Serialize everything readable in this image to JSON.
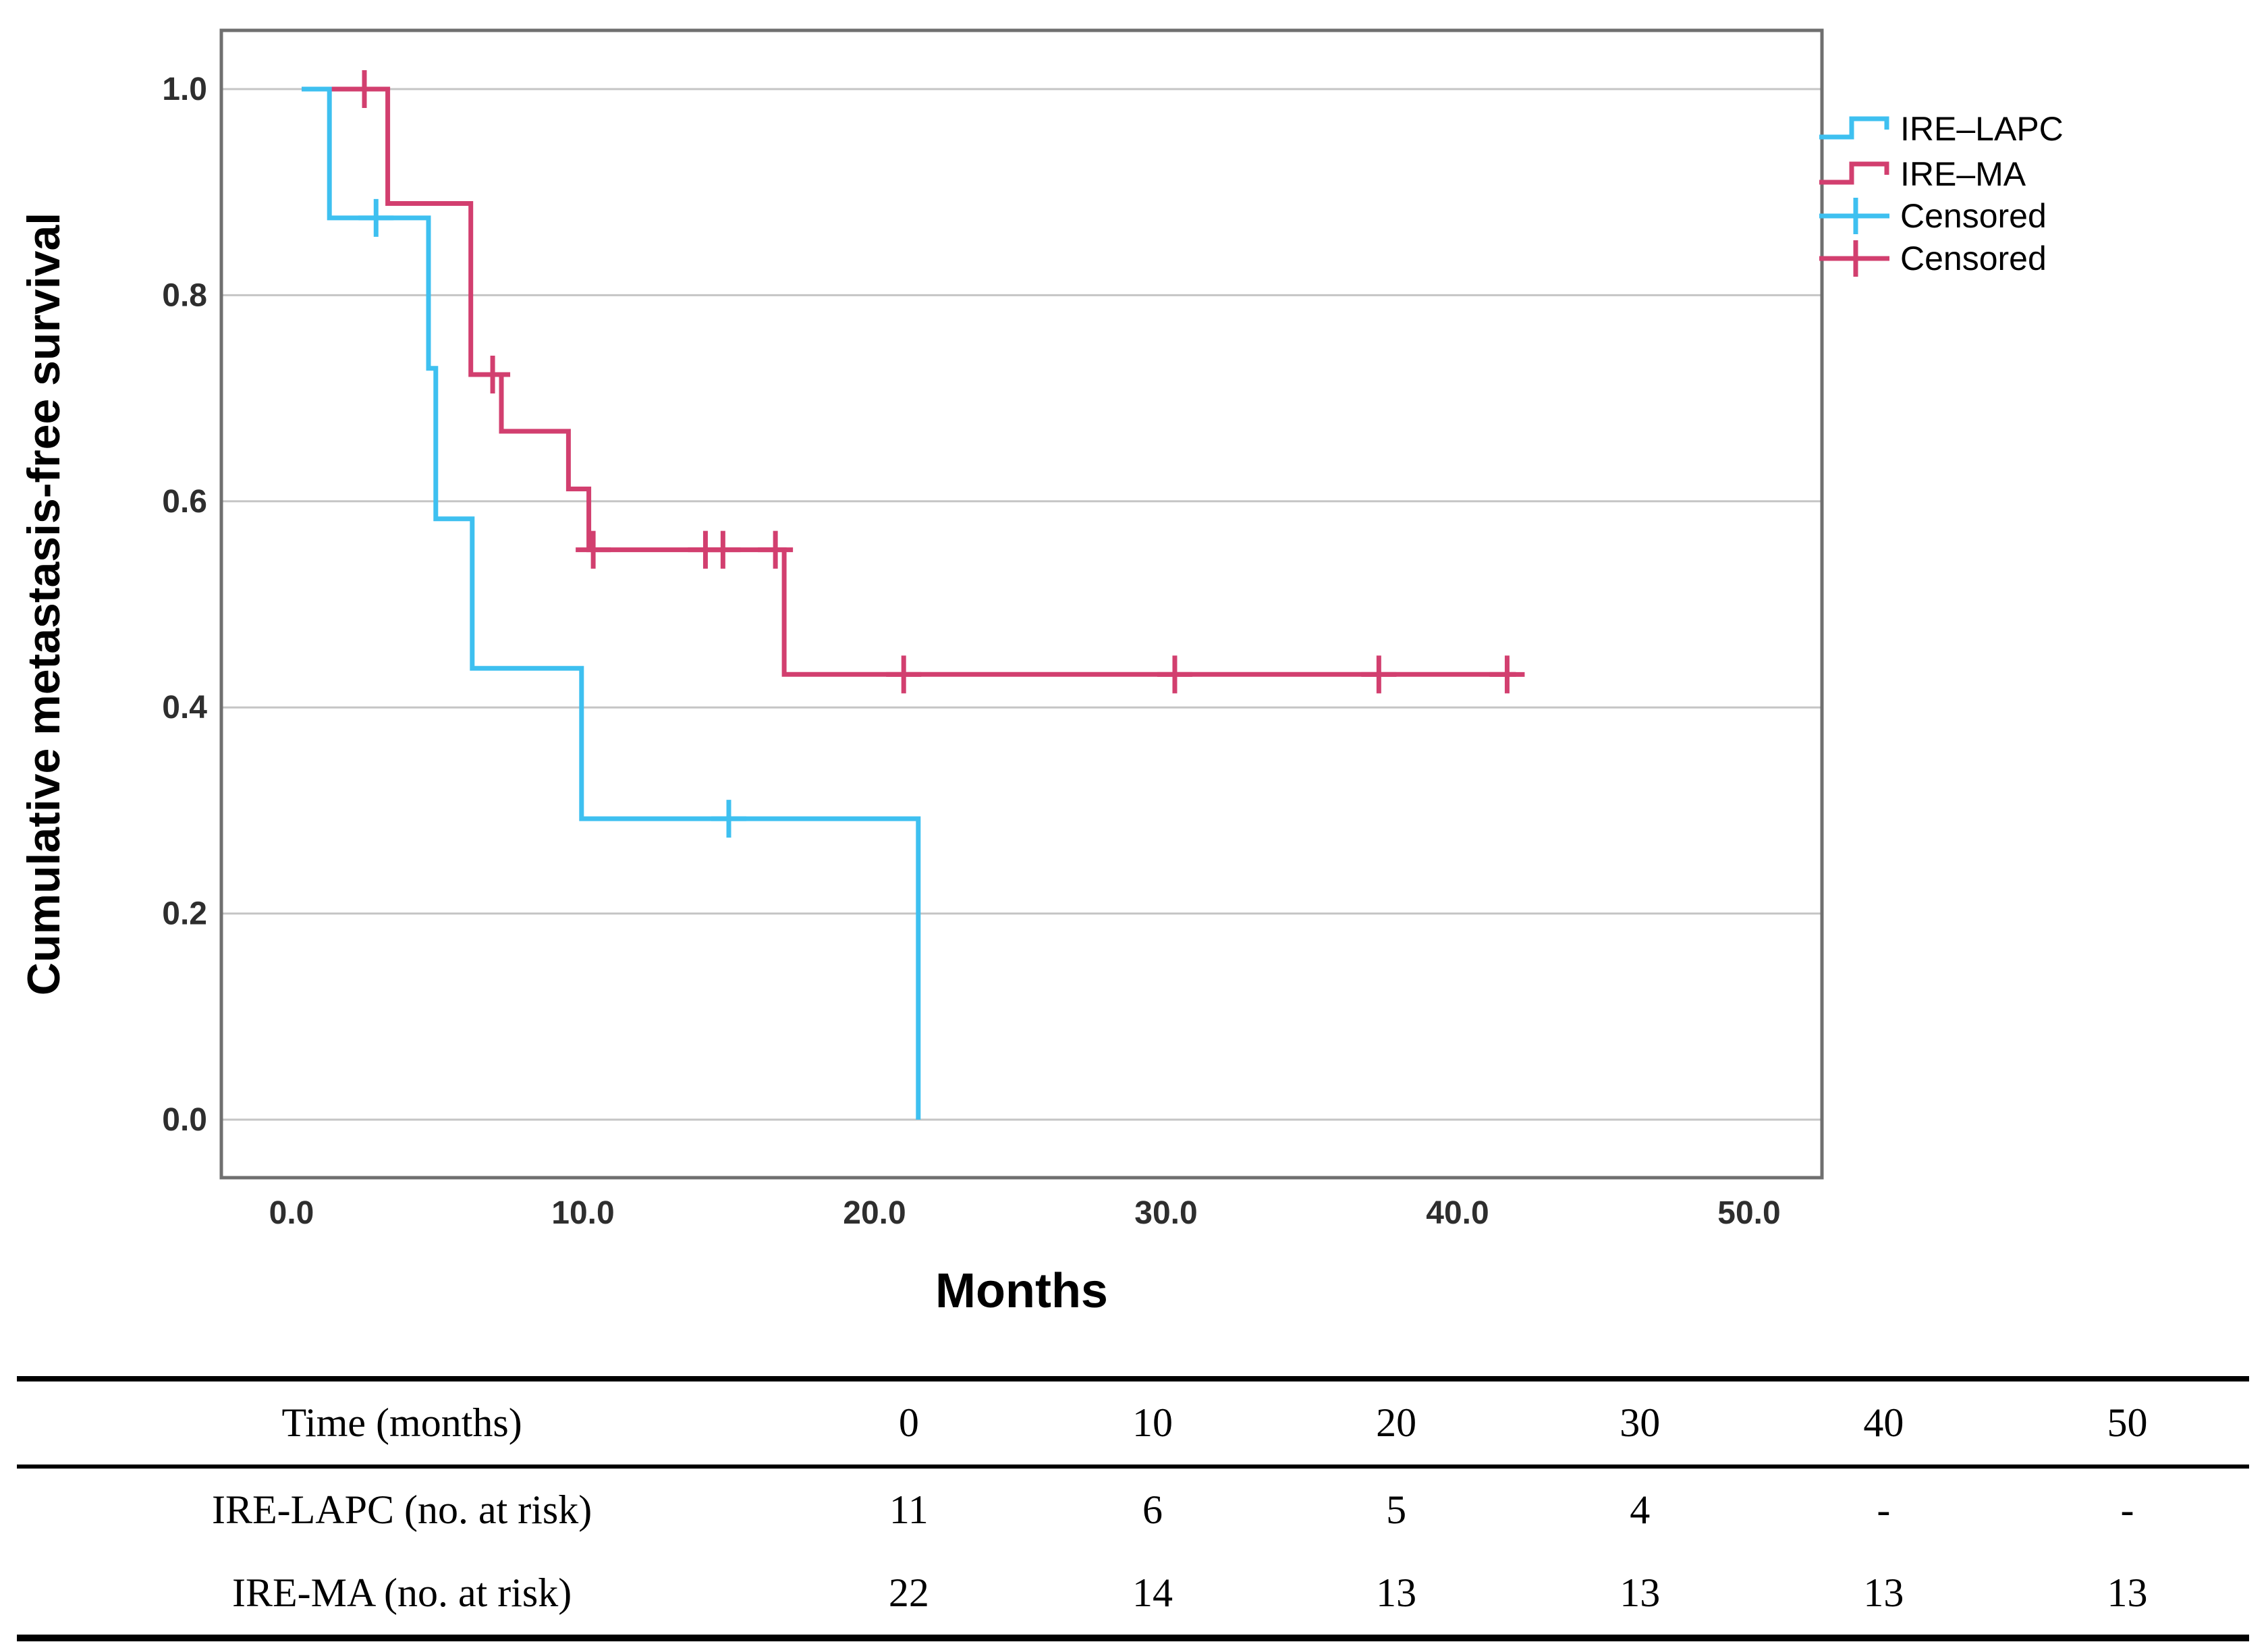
{
  "chart_data": {
    "type": "line",
    "subtype": "kaplan-meier-step",
    "title": "",
    "xlabel": "Months",
    "ylabel": "Cumulative metastasis-free survival",
    "grid": "horizontal",
    "legend_position": "outside-right-top",
    "x_ticks": {
      "values": [
        0,
        10,
        20,
        30,
        40,
        50
      ],
      "labels": [
        "0.0",
        "10.0",
        "20.0",
        "30.0",
        "40.0",
        "50.0"
      ]
    },
    "y_ticks": {
      "values": [
        0.0,
        0.2,
        0.4,
        0.6,
        0.8,
        1.0
      ],
      "labels": [
        "0.0",
        "0.2",
        "0.4",
        "0.6",
        "0.8",
        "1.0"
      ]
    },
    "xlim": [
      -2.4,
      52.5
    ],
    "ylim": [
      -0.06,
      1.06
    ],
    "series": [
      {
        "name": "IRE–MA",
        "color": "#D23F6F",
        "steps": [
          [
            0.35,
            1.0
          ],
          [
            3.3,
            1.0
          ],
          [
            3.3,
            0.889
          ],
          [
            6.15,
            0.889
          ],
          [
            6.15,
            0.723
          ],
          [
            7.2,
            0.723
          ],
          [
            7.2,
            0.668
          ],
          [
            9.5,
            0.668
          ],
          [
            9.5,
            0.612
          ],
          [
            10.2,
            0.612
          ],
          [
            10.2,
            0.553
          ],
          [
            16.9,
            0.553
          ],
          [
            16.9,
            0.432
          ],
          [
            42.0,
            0.432
          ]
        ],
        "censored": [
          [
            2.5,
            1.0
          ],
          [
            6.9,
            0.723
          ],
          [
            10.35,
            0.553
          ],
          [
            14.2,
            0.553
          ],
          [
            14.8,
            0.553
          ],
          [
            16.6,
            0.553
          ],
          [
            21.0,
            0.432
          ],
          [
            30.3,
            0.432
          ],
          [
            37.3,
            0.432
          ],
          [
            41.7,
            0.432
          ]
        ]
      },
      {
        "name": "IRE–LAPC",
        "color": "#3EC0F0",
        "steps": [
          [
            0.35,
            1.0
          ],
          [
            1.3,
            1.0
          ],
          [
            1.3,
            0.875
          ],
          [
            4.7,
            0.875
          ],
          [
            4.7,
            0.729
          ],
          [
            4.95,
            0.729
          ],
          [
            4.95,
            0.583
          ],
          [
            6.2,
            0.583
          ],
          [
            6.2,
            0.438
          ],
          [
            9.95,
            0.438
          ],
          [
            9.95,
            0.292
          ],
          [
            21.5,
            0.292
          ],
          [
            21.5,
            0.0
          ]
        ],
        "censored": [
          [
            2.9,
            0.875
          ],
          [
            15.0,
            0.292
          ]
        ]
      }
    ],
    "legend": {
      "items": [
        {
          "label": "IRE–LAPC",
          "type": "line",
          "color": "#3EC0F0"
        },
        {
          "label": "IRE–MA",
          "type": "line",
          "color": "#D23F6F"
        },
        {
          "label": "Censored",
          "type": "plus",
          "color": "#3EC0F0"
        },
        {
          "label": "Censored",
          "type": "plus",
          "color": "#D23F6F"
        }
      ]
    },
    "risk_table": {
      "header": {
        "label": "Time (months)",
        "values": [
          "0",
          "10",
          "20",
          "30",
          "40",
          "50"
        ]
      },
      "rows": [
        {
          "label": "IRE-LAPC (no. at risk)",
          "values": [
            "11",
            "6",
            "5",
            "4",
            "-",
            "-"
          ]
        },
        {
          "label": "IRE-MA (no. at risk)",
          "values": [
            "22",
            "14",
            "13",
            "13",
            "13",
            "13"
          ]
        }
      ]
    },
    "colors": {
      "grid": "#c5c5c5",
      "frame": "#6f6f6f",
      "tick_text": "#2e2e2e"
    }
  }
}
